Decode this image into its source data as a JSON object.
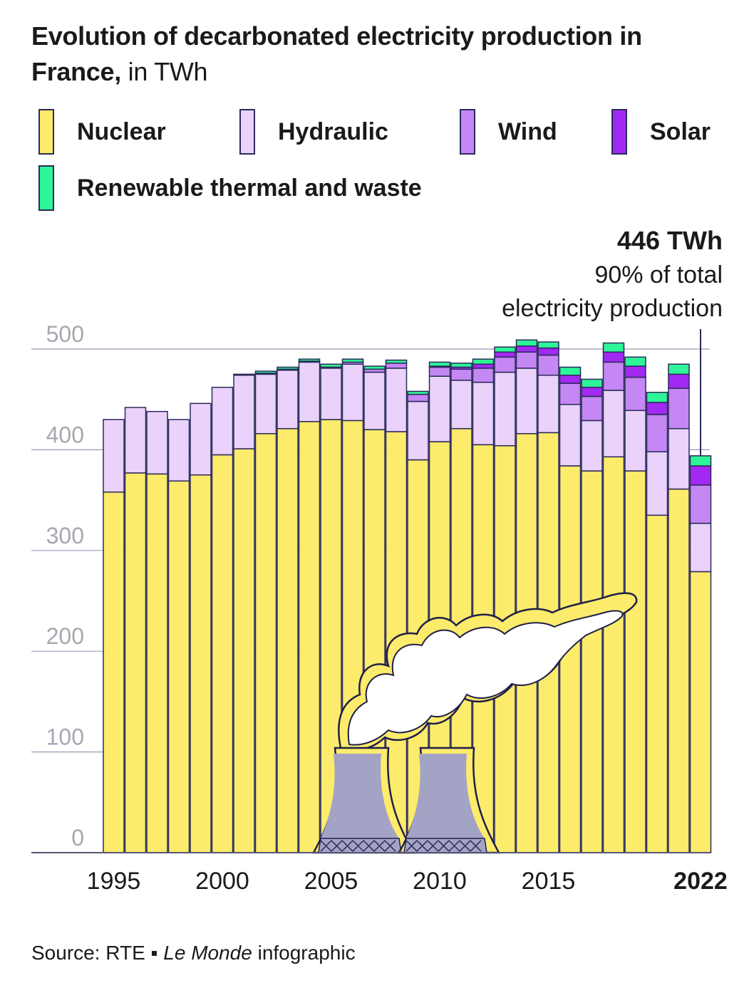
{
  "title": {
    "main": "Evolution of decarbonated electricity production in France,",
    "unit": "in TWh"
  },
  "legend": [
    {
      "label": "Nuclear",
      "color": "#fdeb6b"
    },
    {
      "label": "Hydraulic",
      "color": "#ead2fa"
    },
    {
      "label": "Wind",
      "color": "#c587f3"
    },
    {
      "label": "Solar",
      "color": "#a229f2"
    },
    {
      "label": "Renewable thermal and waste",
      "color": "#2ef598"
    }
  ],
  "annotation": {
    "value": "446 TWh",
    "line1": "90% of total",
    "line2": "electricity production"
  },
  "source": {
    "prefix": "Source: RTE ▪",
    "italic": "Le Monde",
    "suffix": "infographic"
  },
  "chart_data": {
    "type": "bar",
    "stacked": true,
    "categories": [
      "1995",
      "1996",
      "1997",
      "1998",
      "1999",
      "2000",
      "2001",
      "2002",
      "2003",
      "2004",
      "2005",
      "2006",
      "2007",
      "2008",
      "2009",
      "2010",
      "2011",
      "2012",
      "2013",
      "2014",
      "2015",
      "2016",
      "2017",
      "2018",
      "2019",
      "2020",
      "2021",
      "2022"
    ],
    "x_tick_labels": [
      "1995",
      "2000",
      "2005",
      "2010",
      "2015",
      "2022"
    ],
    "series": [
      {
        "name": "Nuclear",
        "color": "#fdeb6b",
        "values": [
          358,
          377,
          376,
          369,
          375,
          395,
          401,
          416,
          421,
          428,
          430,
          429,
          420,
          418,
          390,
          408,
          421,
          405,
          404,
          416,
          417,
          384,
          379,
          393,
          379,
          335,
          361,
          279
        ]
      },
      {
        "name": "Hydraulic",
        "color": "#ead2fa",
        "values": [
          72,
          65,
          62,
          61,
          71,
          67,
          73,
          59,
          58,
          59,
          51,
          56,
          57,
          63,
          58,
          65,
          48,
          62,
          73,
          65,
          57,
          61,
          50,
          66,
          60,
          63,
          60,
          48
        ]
      },
      {
        "name": "Wind",
        "color": "#c587f3",
        "values": [
          0,
          0,
          0,
          0,
          0,
          0,
          0,
          1,
          1,
          1,
          1,
          2,
          3,
          5,
          7,
          9,
          11,
          14,
          15,
          16,
          20,
          21,
          24,
          28,
          33,
          37,
          40,
          38
        ]
      },
      {
        "name": "Solar",
        "color": "#a229f2",
        "values": [
          0,
          0,
          0,
          0,
          0,
          0,
          0,
          0,
          0,
          0,
          0,
          0,
          0,
          0,
          0,
          1,
          2,
          4,
          5,
          6,
          7,
          8,
          9,
          10,
          11,
          12,
          14,
          19
        ]
      },
      {
        "name": "Renewable thermal and waste",
        "color": "#2ef598",
        "values": [
          0,
          0,
          0,
          0,
          0,
          0,
          1,
          2,
          2,
          2,
          3,
          3,
          3,
          3,
          3,
          4,
          4,
          5,
          5,
          6,
          6,
          8,
          8,
          9,
          9,
          10,
          10,
          10
        ]
      }
    ],
    "ylim": [
      0,
      500
    ],
    "yticks": [
      0,
      100,
      200,
      300,
      400,
      500
    ],
    "grid": true
  }
}
